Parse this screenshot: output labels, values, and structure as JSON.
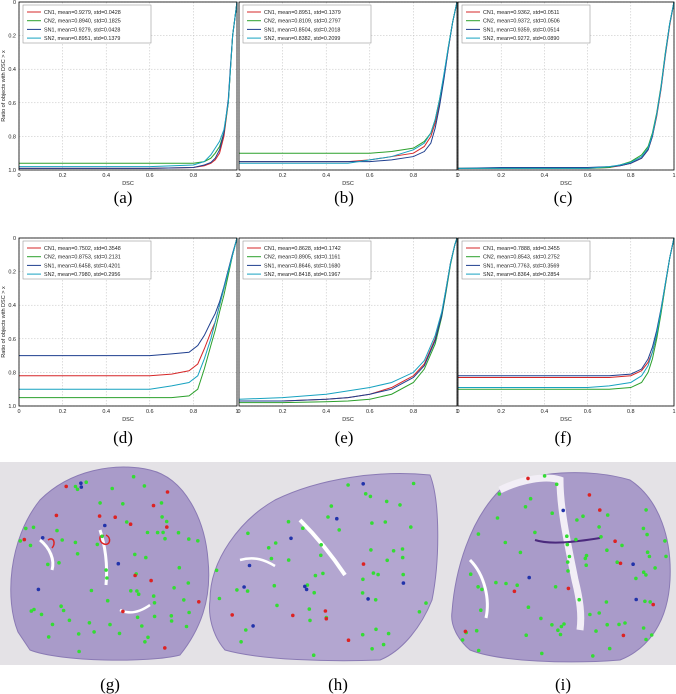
{
  "figure": {
    "panels": [
      "(a)",
      "(b)",
      "(c)",
      "(d)",
      "(e)",
      "(f)",
      "(g)",
      "(h)",
      "(i)"
    ]
  },
  "colors": {
    "CN1": "#d62728",
    "CN2": "#2ca02c",
    "SN1": "#1f3f8f",
    "SN2": "#17a2c0",
    "tissue": "#a99bc9",
    "tissue_dark": "#8a7ab4",
    "marker_green": "#33dd33",
    "marker_red": "#dd2222",
    "marker_blue": "#2233aa"
  },
  "chart_data": [
    {
      "type": "line",
      "panel": "(a)",
      "xlabel": "DSC",
      "ylabel": "Ratio of objects with DSC > x",
      "xlim": [
        0,
        1
      ],
      "ylim": [
        0,
        1
      ],
      "xticks": [
        "0",
        "0.2",
        "0.4",
        "0.6",
        "0.8",
        "1"
      ],
      "yticks": [
        "0",
        "0.2",
        "0.4",
        "0.6",
        "0.8",
        "1.0"
      ],
      "y_inverted": true,
      "grid": true,
      "legend_position": "top-left",
      "x": [
        0,
        0.6,
        0.8,
        0.85,
        0.88,
        0.9,
        0.92,
        0.94,
        0.96,
        0.97,
        0.98,
        1.0
      ],
      "series": [
        {
          "name": "CN1, mean=0.9279, std=0.0428",
          "key": "CN1",
          "values": [
            0.99,
            0.99,
            0.985,
            0.975,
            0.96,
            0.94,
            0.9,
            0.8,
            0.6,
            0.4,
            0.2,
            0.0
          ]
        },
        {
          "name": "CN2, mean=0.8940, std=0.1825",
          "key": "CN2",
          "values": [
            0.96,
            0.96,
            0.96,
            0.95,
            0.93,
            0.9,
            0.86,
            0.78,
            0.6,
            0.4,
            0.2,
            0.0
          ]
        },
        {
          "name": "SN1, mean=0.9279, std=0.0428",
          "key": "SN1",
          "values": [
            0.99,
            0.99,
            0.985,
            0.97,
            0.955,
            0.93,
            0.88,
            0.78,
            0.58,
            0.38,
            0.2,
            0.0
          ]
        },
        {
          "name": "SN2, mean=0.8951, std=0.1379",
          "key": "SN2",
          "values": [
            0.98,
            0.98,
            0.97,
            0.95,
            0.91,
            0.87,
            0.83,
            0.76,
            0.6,
            0.4,
            0.2,
            0.0
          ]
        }
      ]
    },
    {
      "type": "line",
      "panel": "(b)",
      "xlabel": "DSC",
      "ylabel": "",
      "xlim": [
        0,
        1
      ],
      "ylim": [
        0,
        1
      ],
      "xticks": [
        "0",
        "0.2",
        "0.4",
        "0.6",
        "0.8",
        "1"
      ],
      "yticks": [],
      "y_inverted": true,
      "grid": true,
      "legend_position": "top-left",
      "x": [
        0,
        0.3,
        0.5,
        0.6,
        0.7,
        0.8,
        0.85,
        0.88,
        0.9,
        0.92,
        0.94,
        0.96,
        0.98,
        1.0
      ],
      "series": [
        {
          "name": "CN1, mean=0.8951, std=0.1379",
          "key": "CN1",
          "values": [
            0.95,
            0.95,
            0.95,
            0.94,
            0.92,
            0.9,
            0.86,
            0.8,
            0.72,
            0.6,
            0.45,
            0.28,
            0.12,
            0.0
          ]
        },
        {
          "name": "CN2, mean=0.8109, std=0.2797",
          "key": "CN2",
          "values": [
            0.9,
            0.9,
            0.9,
            0.9,
            0.89,
            0.87,
            0.83,
            0.78,
            0.7,
            0.58,
            0.44,
            0.27,
            0.12,
            0.0
          ]
        },
        {
          "name": "SN1, mean=0.8504, std=0.2018",
          "key": "SN1",
          "values": [
            0.95,
            0.95,
            0.95,
            0.95,
            0.94,
            0.92,
            0.89,
            0.84,
            0.75,
            0.62,
            0.46,
            0.28,
            0.12,
            0.0
          ]
        },
        {
          "name": "SN2, mean=0.8382, std=0.2099",
          "key": "SN2",
          "values": [
            0.96,
            0.96,
            0.96,
            0.94,
            0.92,
            0.88,
            0.84,
            0.78,
            0.7,
            0.58,
            0.43,
            0.27,
            0.12,
            0.0
          ]
        }
      ]
    },
    {
      "type": "line",
      "panel": "(c)",
      "xlabel": "DSC",
      "ylabel": "",
      "xlim": [
        0,
        1
      ],
      "ylim": [
        0,
        1
      ],
      "xticks": [
        "0",
        "0.2",
        "0.4",
        "0.6",
        "0.8",
        "1"
      ],
      "yticks": [],
      "y_inverted": true,
      "grid": true,
      "legend_position": "top-left",
      "x": [
        0,
        0.2,
        0.6,
        0.7,
        0.75,
        0.8,
        0.85,
        0.88,
        0.9,
        0.92,
        0.94,
        0.96,
        0.98,
        1.0
      ],
      "series": [
        {
          "name": "CN1, mean=0.9362, std=0.0511",
          "key": "CN1",
          "values": [
            0.99,
            0.99,
            0.99,
            0.985,
            0.975,
            0.96,
            0.93,
            0.88,
            0.8,
            0.68,
            0.52,
            0.32,
            0.14,
            0.0
          ]
        },
        {
          "name": "CN2, mean=0.9372, std=0.0506",
          "key": "CN2",
          "values": [
            0.99,
            0.99,
            0.99,
            0.985,
            0.97,
            0.95,
            0.91,
            0.86,
            0.78,
            0.66,
            0.5,
            0.3,
            0.13,
            0.0
          ]
        },
        {
          "name": "SN1, mean=0.9359, std=0.0514",
          "key": "SN1",
          "values": [
            0.99,
            0.985,
            0.985,
            0.98,
            0.975,
            0.96,
            0.93,
            0.88,
            0.8,
            0.67,
            0.51,
            0.31,
            0.13,
            0.0
          ]
        },
        {
          "name": "SN2, mean=0.9272, std=0.0890",
          "key": "SN2",
          "values": [
            0.99,
            0.99,
            0.99,
            0.98,
            0.97,
            0.955,
            0.92,
            0.87,
            0.79,
            0.67,
            0.51,
            0.31,
            0.13,
            0.0
          ]
        }
      ]
    },
    {
      "type": "line",
      "panel": "(d)",
      "xlabel": "DSC",
      "ylabel": "Ratio of objects with DSC > x",
      "xlim": [
        0,
        1
      ],
      "ylim": [
        0,
        1
      ],
      "xticks": [
        "0",
        "0.2",
        "0.4",
        "0.6",
        "0.8",
        "1"
      ],
      "yticks": [
        "0",
        "0.2",
        "0.4",
        "0.6",
        "0.8",
        "1.0"
      ],
      "y_inverted": true,
      "grid": true,
      "legend_position": "top-left",
      "x": [
        0,
        0.6,
        0.7,
        0.78,
        0.82,
        0.85,
        0.88,
        0.9,
        0.92,
        0.94,
        0.96,
        0.98,
        1.0
      ],
      "series": [
        {
          "name": "CN1, mean=0.7502, std=0.3548",
          "key": "CN1",
          "values": [
            0.82,
            0.82,
            0.81,
            0.79,
            0.75,
            0.66,
            0.56,
            0.5,
            0.4,
            0.3,
            0.2,
            0.1,
            0.0
          ]
        },
        {
          "name": "CN2, mean=0.8753, std=0.2131",
          "key": "CN2",
          "values": [
            0.95,
            0.95,
            0.95,
            0.94,
            0.9,
            0.78,
            0.64,
            0.55,
            0.44,
            0.34,
            0.22,
            0.1,
            0.0
          ]
        },
        {
          "name": "SN1, mean=0.6458, std=0.4201",
          "key": "SN1",
          "values": [
            0.7,
            0.7,
            0.69,
            0.68,
            0.64,
            0.58,
            0.5,
            0.45,
            0.38,
            0.29,
            0.19,
            0.09,
            0.0
          ]
        },
        {
          "name": "SN2, mean=0.7980, std=0.2956",
          "key": "SN2",
          "values": [
            0.9,
            0.9,
            0.88,
            0.86,
            0.82,
            0.72,
            0.6,
            0.5,
            0.4,
            0.3,
            0.2,
            0.1,
            0.0
          ]
        }
      ]
    },
    {
      "type": "line",
      "panel": "(e)",
      "xlabel": "DSC",
      "ylabel": "",
      "xlim": [
        0,
        1
      ],
      "ylim": [
        0,
        1
      ],
      "xticks": [
        "0",
        "0.2",
        "0.4",
        "0.6",
        "0.8",
        "1"
      ],
      "yticks": [],
      "y_inverted": true,
      "grid": true,
      "legend_position": "top-left",
      "x": [
        0,
        0.2,
        0.4,
        0.5,
        0.6,
        0.7,
        0.8,
        0.85,
        0.9,
        0.93,
        0.95,
        0.97,
        0.99,
        1.0
      ],
      "series": [
        {
          "name": "CN1, mean=0.8628, std=0.1742",
          "key": "CN1",
          "values": [
            0.97,
            0.97,
            0.96,
            0.95,
            0.93,
            0.89,
            0.82,
            0.75,
            0.6,
            0.45,
            0.3,
            0.15,
            0.04,
            0.0
          ]
        },
        {
          "name": "CN2, mean=0.8905, std=0.1161",
          "key": "CN2",
          "values": [
            0.98,
            0.98,
            0.975,
            0.97,
            0.96,
            0.93,
            0.86,
            0.78,
            0.63,
            0.47,
            0.32,
            0.16,
            0.04,
            0.0
          ]
        },
        {
          "name": "SN1, mean=0.8646, std=0.1680",
          "key": "SN1",
          "values": [
            0.97,
            0.97,
            0.96,
            0.95,
            0.93,
            0.9,
            0.83,
            0.76,
            0.61,
            0.46,
            0.31,
            0.15,
            0.04,
            0.0
          ]
        },
        {
          "name": "SN2, mean=0.8418, std=0.1967",
          "key": "SN2",
          "values": [
            0.96,
            0.95,
            0.93,
            0.91,
            0.89,
            0.86,
            0.8,
            0.73,
            0.58,
            0.44,
            0.3,
            0.15,
            0.04,
            0.0
          ]
        }
      ]
    },
    {
      "type": "line",
      "panel": "(f)",
      "xlabel": "DSC",
      "ylabel": "",
      "xlim": [
        0,
        1
      ],
      "ylim": [
        0,
        1
      ],
      "xticks": [
        "0",
        "0.2",
        "0.4",
        "0.6",
        "0.8",
        "1"
      ],
      "yticks": [],
      "y_inverted": true,
      "grid": true,
      "legend_position": "top-left",
      "x": [
        0,
        0.6,
        0.7,
        0.8,
        0.85,
        0.88,
        0.9,
        0.92,
        0.94,
        0.96,
        0.98,
        1.0
      ],
      "series": [
        {
          "name": "CN1, mean=0.7888, std=0.3455",
          "key": "CN1",
          "values": [
            0.83,
            0.83,
            0.83,
            0.82,
            0.79,
            0.74,
            0.68,
            0.58,
            0.44,
            0.28,
            0.12,
            0.0
          ]
        },
        {
          "name": "CN2, mean=0.8543, std=0.2752",
          "key": "CN2",
          "values": [
            0.9,
            0.9,
            0.9,
            0.89,
            0.86,
            0.8,
            0.72,
            0.6,
            0.45,
            0.28,
            0.12,
            0.0
          ]
        },
        {
          "name": "SN1, mean=0.7763, std=0.3569",
          "key": "SN1",
          "values": [
            0.82,
            0.82,
            0.82,
            0.81,
            0.78,
            0.72,
            0.65,
            0.55,
            0.42,
            0.27,
            0.12,
            0.0
          ]
        },
        {
          "name": "SN2, mean=0.8364, std=0.2854",
          "key": "SN2",
          "values": [
            0.89,
            0.89,
            0.88,
            0.86,
            0.82,
            0.76,
            0.68,
            0.57,
            0.43,
            0.27,
            0.12,
            0.0
          ]
        }
      ]
    }
  ],
  "images": [
    {
      "panel": "(g)",
      "description_color": "purple-stain",
      "markers_green": 70,
      "markers_red": 14,
      "markers_blue": 6
    },
    {
      "panel": "(h)",
      "description_color": "purple-stain",
      "markers_green": 55,
      "markers_red": 6,
      "markers_blue": 10
    },
    {
      "panel": "(i)",
      "description_color": "purple-stain",
      "markers_green": 75,
      "markers_red": 10,
      "markers_blue": 4
    }
  ]
}
